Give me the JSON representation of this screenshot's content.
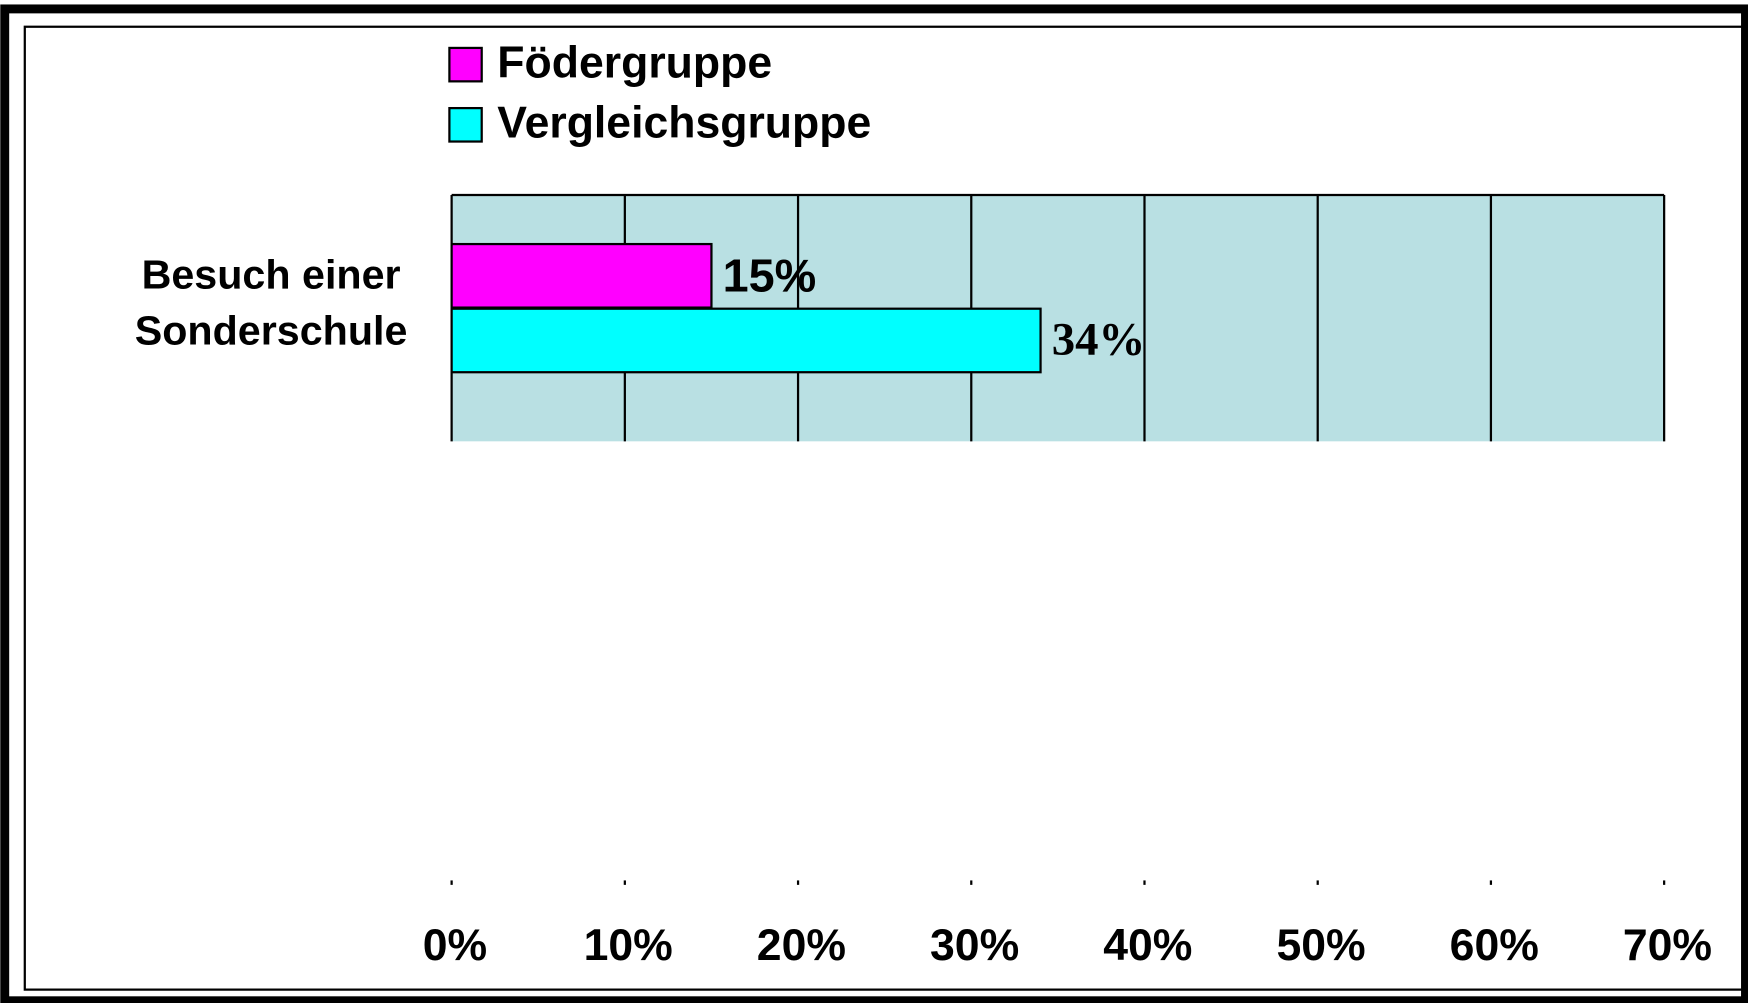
{
  "chart_data": {
    "type": "bar",
    "orientation": "horizontal",
    "categories": [
      "Besuch einer Sonderschule"
    ],
    "series": [
      {
        "name": "Födergruppe",
        "color": "#ff00ff",
        "values": [
          15
        ],
        "value_labels": [
          "15%"
        ]
      },
      {
        "name": "Vergleichsgruppe",
        "color": "#00ffff",
        "values": [
          34
        ],
        "value_labels": [
          "34%"
        ]
      }
    ],
    "xlim": [
      0,
      70
    ],
    "xticks": [
      {
        "value": 0,
        "label": "0%"
      },
      {
        "value": 10,
        "label": "10%"
      },
      {
        "value": 20,
        "label": "20%"
      },
      {
        "value": 30,
        "label": "30%"
      },
      {
        "value": 40,
        "label": "40%"
      },
      {
        "value": 50,
        "label": "50%"
      },
      {
        "value": 60,
        "label": "60%"
      },
      {
        "value": 70,
        "label": "70%"
      }
    ],
    "grid": true,
    "plot_background": "#b9e0e3"
  }
}
